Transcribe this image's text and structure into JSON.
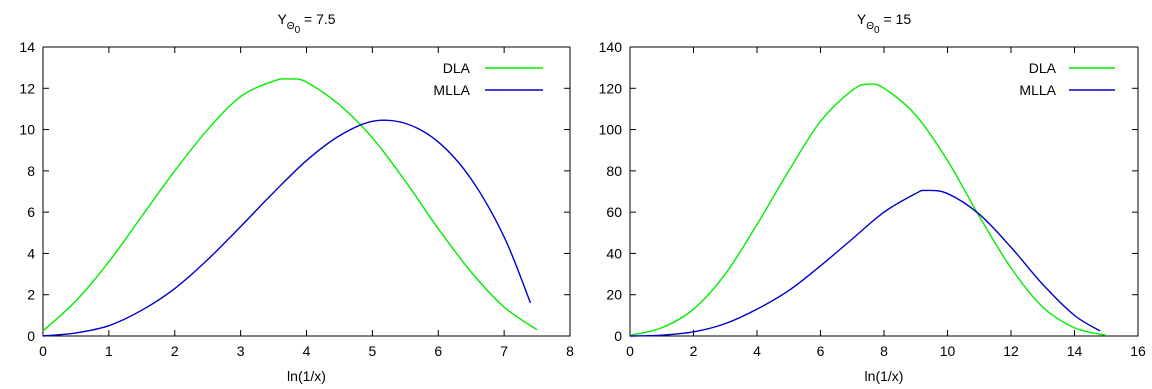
{
  "chart_data": [
    {
      "type": "line",
      "title": {
        "base": "Y",
        "sub": "Θ",
        "subsub": "0",
        "suffix": " = 7.5"
      },
      "xlabel": "ln(1/x)",
      "ylabel": "",
      "xlim": [
        0,
        8
      ],
      "ylim": [
        0,
        14
      ],
      "xticks": [
        0,
        1,
        2,
        3,
        4,
        5,
        6,
        7,
        8
      ],
      "yticks": [
        0,
        2,
        4,
        6,
        8,
        10,
        12,
        14
      ],
      "grid": false,
      "legend_position": "top-right",
      "series": [
        {
          "name": "DLA",
          "color": "#00ee00",
          "x": [
            0,
            0.5,
            1,
            1.5,
            2,
            2.5,
            3,
            3.5,
            3.75,
            4,
            4.5,
            5,
            5.5,
            6,
            6.5,
            7,
            7.5
          ],
          "y": [
            0.25,
            1.7,
            3.6,
            5.8,
            8.0,
            10.0,
            11.6,
            12.35,
            12.45,
            12.3,
            11.2,
            9.6,
            7.5,
            5.2,
            3.1,
            1.4,
            0.3
          ]
        },
        {
          "name": "MLLA",
          "color": "#0000cc",
          "x": [
            0,
            0.5,
            1,
            1.5,
            2,
            2.5,
            3,
            3.5,
            4,
            4.5,
            5,
            5.5,
            6,
            6.5,
            7,
            7.4
          ],
          "y": [
            0,
            0.15,
            0.5,
            1.25,
            2.3,
            3.7,
            5.3,
            6.95,
            8.5,
            9.7,
            10.4,
            10.3,
            9.4,
            7.6,
            4.8,
            1.6
          ]
        }
      ]
    },
    {
      "type": "line",
      "title": {
        "base": "Y",
        "sub": "Θ",
        "subsub": "0",
        "suffix": " = 15"
      },
      "xlabel": "ln(1/x)",
      "ylabel": "",
      "xlim": [
        0,
        16
      ],
      "ylim": [
        0,
        140
      ],
      "xticks": [
        0,
        2,
        4,
        6,
        8,
        10,
        12,
        14,
        16
      ],
      "yticks": [
        0,
        20,
        40,
        60,
        80,
        100,
        120,
        140
      ],
      "grid": false,
      "legend_position": "top-right",
      "series": [
        {
          "name": "DLA",
          "color": "#00ee00",
          "x": [
            0,
            1,
            2,
            3,
            4,
            5,
            6,
            7,
            7.5,
            8,
            9,
            10,
            11,
            12,
            13,
            14,
            15
          ],
          "y": [
            0.3,
            4,
            13,
            30,
            54,
            80,
            104,
            119,
            122,
            120,
            107,
            85,
            58,
            33,
            14,
            4,
            0.3
          ]
        },
        {
          "name": "MLLA",
          "color": "#0000cc",
          "x": [
            0,
            1,
            2,
            3,
            4,
            5,
            6,
            7,
            8,
            9,
            9.3,
            10,
            11,
            12,
            13,
            14,
            14.8
          ],
          "y": [
            0,
            0.4,
            2,
            6,
            13,
            22,
            34,
            47,
            60,
            69,
            70.5,
            69,
            59,
            43,
            25,
            10,
            2.5
          ]
        }
      ]
    }
  ]
}
